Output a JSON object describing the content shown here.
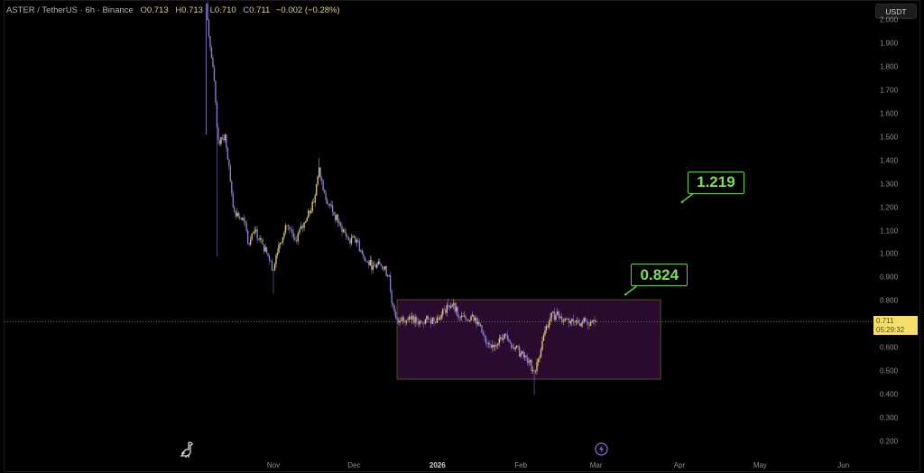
{
  "header": {
    "symbol": "ASTER / TetherUS · 6h · Binance",
    "open_label": "O",
    "open": "0.713",
    "high_label": "H",
    "high": "0.713",
    "low_label": "L",
    "low": "0.710",
    "close_label": "C",
    "close": "0.711",
    "change": "−0.002 (−0.28%)"
  },
  "currency_button": "USDT",
  "last_price": {
    "price": "0.711",
    "countdown": "05:29:32"
  },
  "icons": {
    "logo": "dinosaur-icon",
    "event": "lightning-icon"
  },
  "colors": {
    "up": "#e6cf73",
    "down": "#8f84d6",
    "range_fill": "#2a0a2e",
    "range_border": "#4a4220",
    "callout": "#5fcf3a",
    "last_price": "#f5df6c"
  },
  "chart_data": {
    "type": "candlestick",
    "title": "",
    "y_axis": {
      "range": [
        0.2,
        2.0
      ],
      "ticks": [
        "2.000",
        "1.900",
        "1.800",
        "1.700",
        "1.600",
        "1.500",
        "1.400",
        "1.300",
        "1.200",
        "1.100",
        "1.000",
        "0.900",
        "0.800",
        "0.600",
        "0.500",
        "0.400",
        "0.300",
        "0.200"
      ],
      "position": "right"
    },
    "x_axis": {
      "ticks": [
        {
          "label": "Nov",
          "date": "2025-11-01"
        },
        {
          "label": "Dec",
          "date": "2025-12-01"
        },
        {
          "label": "2026",
          "date": "2026-01-01",
          "bold": true
        },
        {
          "label": "Feb",
          "date": "2026-02-01"
        },
        {
          "label": "Mar",
          "date": "2026-03-01"
        },
        {
          "label": "Apr",
          "date": "2026-04-01"
        },
        {
          "label": "May",
          "date": "2026-05-01"
        },
        {
          "label": "Jun",
          "date": "2026-06-01"
        }
      ]
    },
    "grid": false,
    "series": [
      {
        "date": "2025-10-07",
        "close": 2.07,
        "low": 1.51
      },
      {
        "date": "2025-10-08",
        "close": 1.93
      },
      {
        "date": "2025-10-10",
        "close": 1.74
      },
      {
        "date": "2025-10-11",
        "close": 1.54,
        "low": 0.99
      },
      {
        "date": "2025-10-12",
        "close": 1.47
      },
      {
        "date": "2025-10-14",
        "close": 1.51
      },
      {
        "date": "2025-10-16",
        "close": 1.31
      },
      {
        "date": "2025-10-17",
        "close": 1.2
      },
      {
        "date": "2025-10-19",
        "close": 1.16
      },
      {
        "date": "2025-10-21",
        "close": 1.14
      },
      {
        "date": "2025-10-23",
        "close": 1.04
      },
      {
        "date": "2025-10-25",
        "close": 1.1
      },
      {
        "date": "2025-10-28",
        "close": 1.04
      },
      {
        "date": "2025-10-31",
        "close": 0.97
      },
      {
        "date": "2025-11-01",
        "close": 0.93,
        "low": 0.83
      },
      {
        "date": "2025-11-03",
        "close": 1.04
      },
      {
        "date": "2025-11-06",
        "close": 1.12
      },
      {
        "date": "2025-11-09",
        "close": 1.06
      },
      {
        "date": "2025-11-13",
        "close": 1.14
      },
      {
        "date": "2025-11-16",
        "close": 1.22
      },
      {
        "date": "2025-11-18",
        "close": 1.37,
        "high": 1.41
      },
      {
        "date": "2025-11-20",
        "close": 1.26
      },
      {
        "date": "2025-11-23",
        "close": 1.18
      },
      {
        "date": "2025-11-26",
        "close": 1.12
      },
      {
        "date": "2025-11-29",
        "close": 1.06
      },
      {
        "date": "2025-12-02",
        "close": 1.06
      },
      {
        "date": "2025-12-05",
        "close": 0.97
      },
      {
        "date": "2025-12-08",
        "close": 0.95
      },
      {
        "date": "2025-12-11",
        "close": 0.95
      },
      {
        "date": "2025-12-14",
        "close": 0.91
      },
      {
        "date": "2025-12-15",
        "close": 0.79
      },
      {
        "date": "2025-12-17",
        "close": 0.72
      },
      {
        "date": "2025-12-19",
        "close": 0.73
      },
      {
        "date": "2025-12-22",
        "close": 0.72
      },
      {
        "date": "2025-12-26",
        "close": 0.71
      },
      {
        "date": "2025-12-29",
        "close": 0.72
      },
      {
        "date": "2026-01-02",
        "close": 0.73
      },
      {
        "date": "2026-01-05",
        "close": 0.78,
        "high": 0.81
      },
      {
        "date": "2026-01-07",
        "close": 0.79
      },
      {
        "date": "2026-01-09",
        "close": 0.73
      },
      {
        "date": "2026-01-12",
        "close": 0.72
      },
      {
        "date": "2026-01-14",
        "close": 0.74
      },
      {
        "date": "2026-01-16",
        "close": 0.71
      },
      {
        "date": "2026-01-19",
        "close": 0.62
      },
      {
        "date": "2026-01-21",
        "close": 0.6
      },
      {
        "date": "2026-01-24",
        "close": 0.64
      },
      {
        "date": "2026-01-26",
        "close": 0.66
      },
      {
        "date": "2026-01-28",
        "close": 0.62
      },
      {
        "date": "2026-01-30",
        "close": 0.6
      },
      {
        "date": "2026-02-02",
        "close": 0.56
      },
      {
        "date": "2026-02-04",
        "close": 0.54
      },
      {
        "date": "2026-02-06",
        "close": 0.5,
        "low": 0.4
      },
      {
        "date": "2026-02-08",
        "close": 0.56
      },
      {
        "date": "2026-02-09",
        "close": 0.63
      },
      {
        "date": "2026-02-12",
        "close": 0.73
      },
      {
        "date": "2026-02-14",
        "close": 0.74
      },
      {
        "date": "2026-02-18",
        "close": 0.72
      },
      {
        "date": "2026-02-21",
        "close": 0.71
      },
      {
        "date": "2026-02-24",
        "close": 0.71
      },
      {
        "date": "2026-02-27",
        "close": 0.71
      },
      {
        "date": "2026-03-01",
        "close": 0.711
      }
    ],
    "range_box": {
      "start": "2025-12-17",
      "end": "2026-03-25",
      "top": 0.805,
      "bottom": 0.466
    },
    "annotations": [
      {
        "text": "0.824",
        "date": "2026-03-15",
        "price": 0.824
      },
      {
        "text": "1.219",
        "date": "2026-04-05",
        "price": 1.219
      }
    ],
    "last_price_line": 0.711
  }
}
